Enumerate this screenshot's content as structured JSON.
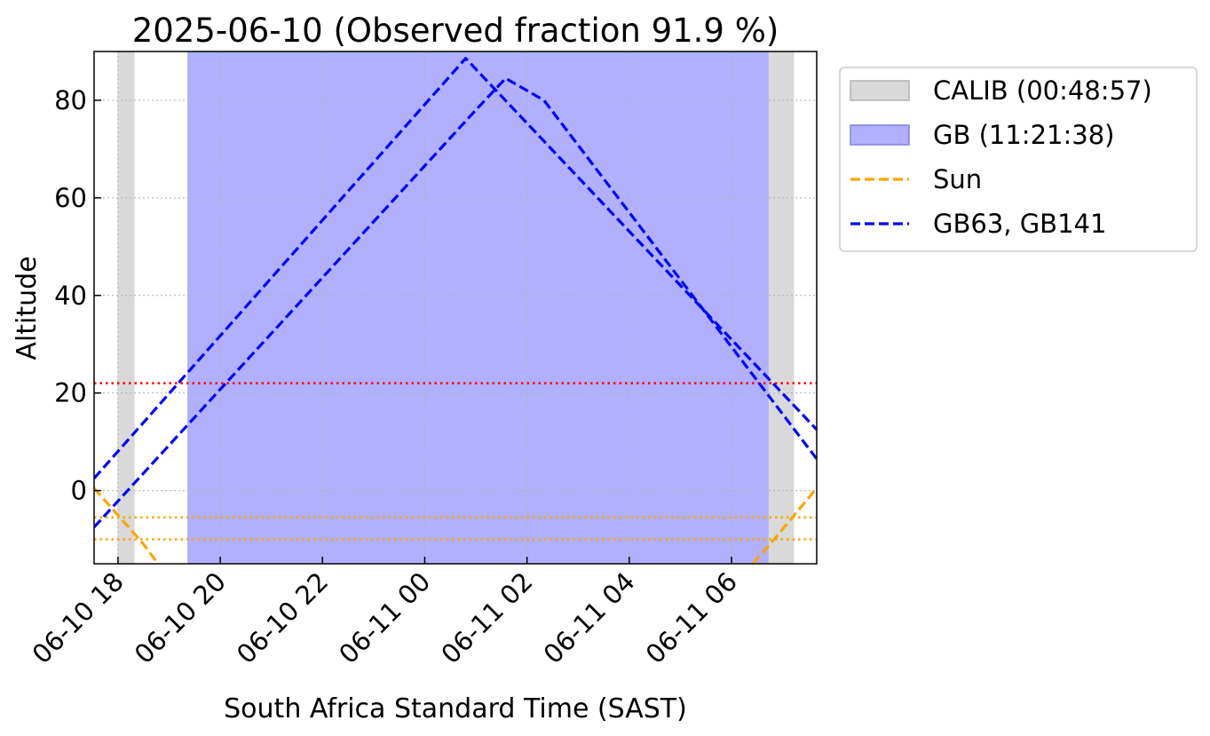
{
  "chart_data": {
    "type": "line",
    "title": "2025-06-10 (Observed fraction 91.9 %)",
    "xlabel": "South Africa Standard Time (SAST)",
    "ylabel": "Altitude",
    "xlim": [
      "2025-06-10 17:32",
      "2025-06-11 07:40"
    ],
    "ylim": [
      -15,
      90
    ],
    "grid": true,
    "legend_position": "outside-top-right",
    "x_ticks": [
      {
        "t": "2025-06-10 18:00",
        "label": "06-10 18"
      },
      {
        "t": "2025-06-10 20:00",
        "label": "06-10 20"
      },
      {
        "t": "2025-06-10 22:00",
        "label": "06-10 22"
      },
      {
        "t": "2025-06-11 00:00",
        "label": "06-11 00"
      },
      {
        "t": "2025-06-11 02:00",
        "label": "06-11 02"
      },
      {
        "t": "2025-06-11 04:00",
        "label": "06-11 04"
      },
      {
        "t": "2025-06-11 06:00",
        "label": "06-11 06"
      }
    ],
    "y_ticks": [
      0,
      20,
      40,
      60,
      80
    ],
    "spans": [
      {
        "name": "CALIB (00:48:57)",
        "color": "#d9d9d9",
        "intervals": [
          [
            "2025-06-10 18:00",
            "2025-06-10 18:19"
          ],
          [
            "2025-06-11 06:43",
            "2025-06-11 07:13"
          ]
        ]
      },
      {
        "name": "GB (11:21:38)",
        "color": "#b0b0ff",
        "intervals": [
          [
            "2025-06-10 19:22",
            "2025-06-11 06:43"
          ]
        ]
      }
    ],
    "hlines": [
      {
        "y": 22,
        "color": "#ff0000"
      },
      {
        "y": -5.5,
        "color": "#ffa500"
      },
      {
        "y": -10,
        "color": "#ffa500"
      }
    ],
    "series": [
      {
        "name": "Sun",
        "color": "#ffa500",
        "style": "dashed",
        "segments": [
          [
            [
              "2025-06-10 17:32",
              0.5
            ],
            [
              "2025-06-10 18:30",
              -11
            ],
            [
              "2025-06-10 18:47",
              -15
            ]
          ],
          [
            [
              "2025-06-11 06:25",
              -15
            ],
            [
              "2025-06-11 06:50",
              -10
            ],
            [
              "2025-06-11 07:40",
              0.5
            ]
          ]
        ]
      },
      {
        "name": "GB63, GB141",
        "color": "#0000ff",
        "style": "dashed",
        "segments": [
          [
            [
              "2025-06-10 17:32",
              2.5
            ],
            [
              "2025-06-11 00:48",
              88.6
            ],
            [
              "2025-06-11 07:40",
              12.5
            ]
          ],
          [
            [
              "2025-06-10 17:32",
              -7.5
            ],
            [
              "2025-06-11 01:00",
              78
            ],
            [
              "2025-06-11 01:35",
              84.5
            ],
            [
              "2025-06-11 02:20",
              80
            ],
            [
              "2025-06-11 07:40",
              6.5
            ]
          ]
        ]
      }
    ],
    "legend": [
      {
        "label": "CALIB (00:48:57)",
        "kind": "patch",
        "color": "#d9d9d9",
        "edge": "#b3b3b3"
      },
      {
        "label": "GB (11:21:38)",
        "kind": "patch",
        "color": "#b0b0ff",
        "edge": "#7f7fe6"
      },
      {
        "label": "Sun",
        "kind": "line",
        "color": "#ffa500"
      },
      {
        "label": "GB63, GB141",
        "kind": "line",
        "color": "#0000ff"
      }
    ]
  }
}
